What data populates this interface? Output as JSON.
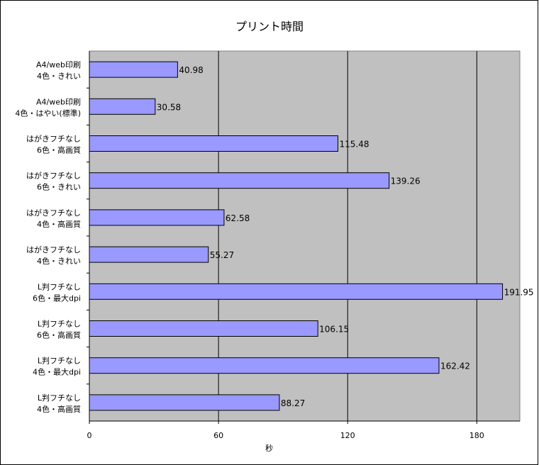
{
  "chart_data": {
    "type": "bar",
    "orientation": "horizontal",
    "title": "プリント時間",
    "xlabel": "秒",
    "ylabel": "",
    "xlim": [
      0,
      200
    ],
    "xticks": [
      0,
      60,
      120,
      180
    ],
    "grid": true,
    "colors": {
      "bar": "#9999FF",
      "plot_bg": "#C0C0C0",
      "gridline": "#000000"
    },
    "categories": [
      [
        "A4/web印刷",
        "4色・きれい"
      ],
      [
        "A4/web印刷",
        "4色・はやい(標準)"
      ],
      [
        "はがきフチなし",
        "6色・高画質"
      ],
      [
        "はがきフチなし",
        "6色・きれい"
      ],
      [
        "はがきフチなし",
        "4色・高画質"
      ],
      [
        "はがきフチなし",
        "4色・きれい"
      ],
      [
        "L判フチなし",
        "6色・最大dpi"
      ],
      [
        "L判フチなし",
        "6色・高画質"
      ],
      [
        "L判フチなし",
        "4色・最大dpi"
      ],
      [
        "L判フチなし",
        "4色・高画質"
      ]
    ],
    "values": [
      40.98,
      30.58,
      115.48,
      139.26,
      62.58,
      55.27,
      191.95,
      106.15,
      162.42,
      88.27
    ],
    "value_labels": [
      "40.98",
      "30.58",
      "115.48",
      "139.26",
      "62.58",
      "55.27",
      "191.95",
      "106.15",
      "162.42",
      "88.27"
    ]
  }
}
